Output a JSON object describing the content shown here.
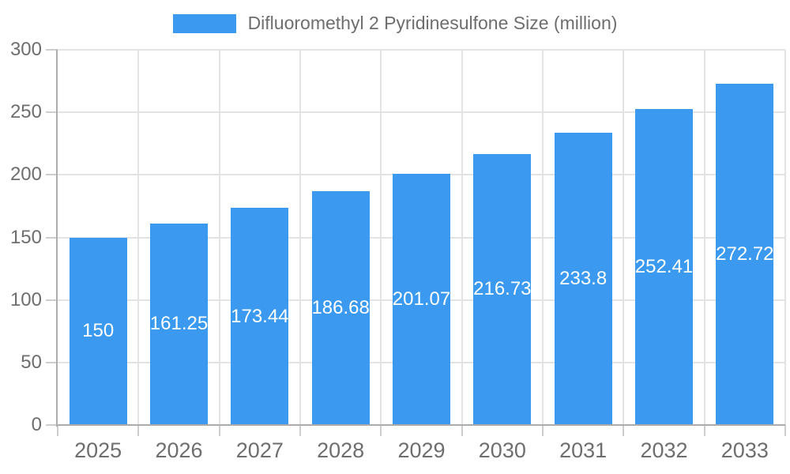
{
  "chart_data": {
    "type": "bar",
    "title": "Difluoromethyl 2 Pyridinesulfone Size (million)",
    "legend": {
      "label": "Difluoromethyl 2 Pyridinesulfone Size (million)",
      "position": "top-center",
      "swatch_shape": "rect"
    },
    "categories": [
      "2025",
      "2026",
      "2027",
      "2028",
      "2029",
      "2030",
      "2031",
      "2032",
      "2033"
    ],
    "values": [
      150,
      161.25,
      173.44,
      186.68,
      201.07,
      216.73,
      233.8,
      252.41,
      272.72
    ],
    "value_labels": [
      "150",
      "161.25",
      "173.44",
      "186.68",
      "201.07",
      "216.73",
      "233.8",
      "252.41",
      "272.72"
    ],
    "value_label_position": "inside-center",
    "xlabel": "",
    "ylabel": "",
    "ylim": [
      0,
      300
    ],
    "y_ticks": [
      0,
      50,
      100,
      150,
      200,
      250,
      300
    ],
    "y_tick_labels": [
      "0",
      "50",
      "100",
      "150",
      "200",
      "250",
      "300"
    ],
    "grid": true,
    "colors": {
      "bar": "#3B9AF0",
      "value_text": "#FFFFFF",
      "axis_text": "#6E6E6E",
      "legend_text": "#6E6E6E",
      "gridline": "#E3E3E3",
      "tick": "#CDCDCD",
      "axis_line": "#ACACAC",
      "background": "#FFFFFF"
    }
  }
}
